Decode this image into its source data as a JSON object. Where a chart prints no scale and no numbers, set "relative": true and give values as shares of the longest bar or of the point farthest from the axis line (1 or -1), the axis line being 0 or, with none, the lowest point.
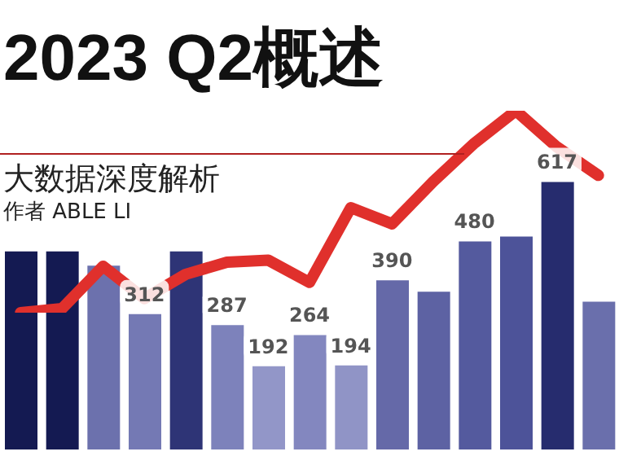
{
  "chart_data": [
    {
      "type": "bar",
      "title": "2023 Q2概述",
      "subtitle": "大数据深度解析",
      "annotations": [
        "作者 ABLE LI"
      ],
      "categories": [
        null,
        null,
        null,
        null,
        null,
        null,
        null,
        null,
        null,
        null,
        null,
        null,
        null,
        null,
        null
      ],
      "values": [
        457,
        457,
        424,
        312,
        457,
        287,
        192,
        264,
        194,
        390,
        364,
        480,
        491,
        617,
        341
      ],
      "colors": [
        "#141a52",
        "#141a52",
        "#6c71ad",
        "#7479b4",
        "#2e3476",
        "#7d82bb",
        "#9296c8",
        "#8387bf",
        "#9094c6",
        "#6569a8",
        "#5d62a3",
        "#545a9e",
        "#4d5399",
        "#262c6e",
        "#6a6fac"
      ],
      "value_labels": [
        null,
        null,
        null,
        "312",
        null,
        "287",
        "192",
        "264",
        "194",
        "390",
        null,
        "480",
        null,
        "617",
        null
      ]
    },
    {
      "type": "line",
      "relative": true,
      "categories": [
        null,
        null,
        null,
        null,
        null,
        null,
        null,
        null,
        null,
        null,
        null,
        null,
        null,
        null,
        null
      ],
      "color": "#e0302c",
      "values": [
        0,
        0.02,
        0.23,
        0.07,
        0.19,
        0.25,
        0.26,
        0.15,
        0.52,
        0.44,
        0.65,
        0.84,
        1,
        0.82,
        0.68
      ]
    }
  ]
}
